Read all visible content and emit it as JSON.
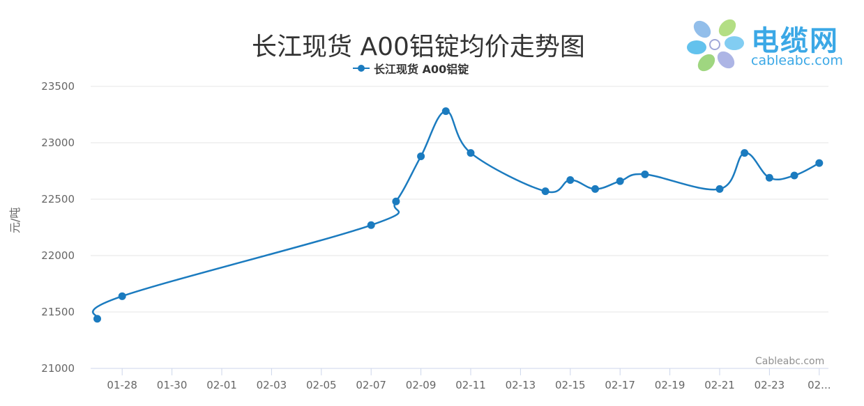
{
  "header": {
    "title": "长江现货 A00铝锭均价走势图",
    "legend_label": "长江现货 A00铝锭"
  },
  "logo": {
    "cn": "电缆网",
    "en": "cableabc.com"
  },
  "watermark": "Cableabc.com",
  "colors": {
    "series": "#1b7bbf",
    "grid": "#e6e6e6",
    "axis": "#ccd6eb",
    "logo": "#3ba8e6"
  },
  "chart_data": {
    "type": "line",
    "title": "长江现货 A00铝锭均价走势图",
    "ylabel": "元/吨",
    "xlabel": "",
    "ylim": [
      21000,
      23500
    ],
    "yticks": [
      21000,
      21500,
      22000,
      22500,
      23000,
      23500
    ],
    "xtick_labels": [
      "01-28",
      "01-30",
      "02-01",
      "02-03",
      "02-05",
      "02-07",
      "02-09",
      "02-11",
      "02-13",
      "02-15",
      "02-17",
      "02-19",
      "02-21",
      "02-23",
      "02..."
    ],
    "grid": true,
    "legend_position": "top-center",
    "series": [
      {
        "name": "长江现货 A00铝锭",
        "points": [
          {
            "x": "01-27",
            "y": 21440
          },
          {
            "x": "01-28",
            "y": 21640
          },
          {
            "x": "02-07",
            "y": 22270
          },
          {
            "x": "02-08",
            "y": 22480
          },
          {
            "x": "02-09",
            "y": 22880
          },
          {
            "x": "02-10",
            "y": 23280
          },
          {
            "x": "02-11",
            "y": 22910
          },
          {
            "x": "02-14",
            "y": 22570
          },
          {
            "x": "02-15",
            "y": 22670
          },
          {
            "x": "02-16",
            "y": 22590
          },
          {
            "x": "02-17",
            "y": 22660
          },
          {
            "x": "02-18",
            "y": 22720
          },
          {
            "x": "02-21",
            "y": 22590
          },
          {
            "x": "02-22",
            "y": 22910
          },
          {
            "x": "02-23",
            "y": 22690
          },
          {
            "x": "02-24",
            "y": 22710
          },
          {
            "x": "02-25",
            "y": 22820
          }
        ]
      }
    ]
  }
}
